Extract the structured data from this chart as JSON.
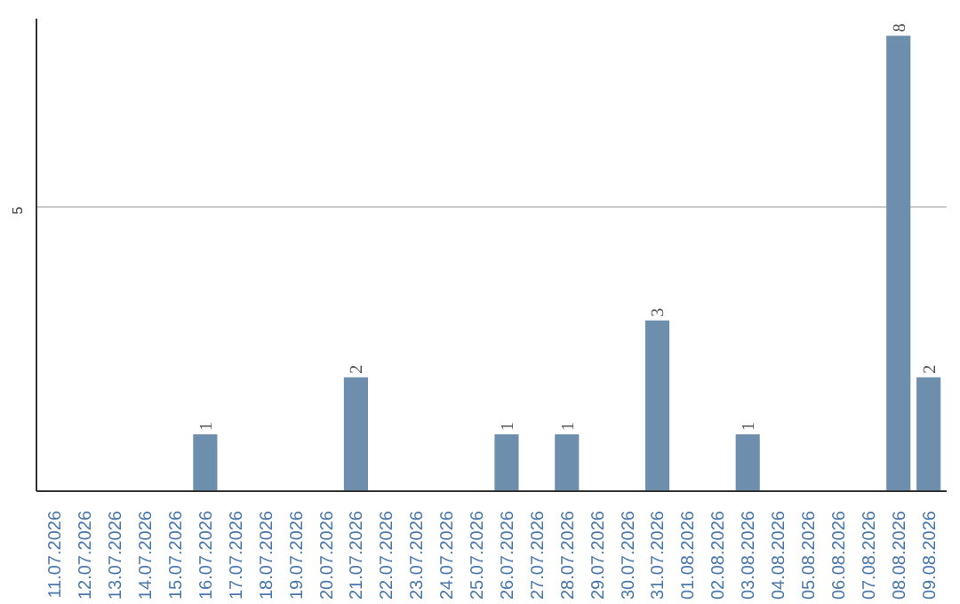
{
  "chart_data": {
    "type": "bar",
    "categories": [
      "11.07.2026",
      "12.07.2026",
      "13.07.2026",
      "14.07.2026",
      "15.07.2026",
      "16.07.2026",
      "17.07.2026",
      "18.07.2026",
      "19.07.2026",
      "20.07.2026",
      "21.07.2026",
      "22.07.2026",
      "23.07.2026",
      "24.07.2026",
      "25.07.2026",
      "26.07.2026",
      "27.07.2026",
      "28.07.2026",
      "29.07.2026",
      "30.07.2026",
      "31.07.2026",
      "01.08.2026",
      "02.08.2026",
      "03.08.2026",
      "04.08.2026",
      "05.08.2026",
      "06.08.2026",
      "07.08.2026",
      "08.08.2026",
      "09.08.2026"
    ],
    "values": [
      0,
      0,
      0,
      0,
      0,
      1,
      0,
      0,
      0,
      0,
      2,
      0,
      0,
      0,
      0,
      1,
      0,
      1,
      0,
      0,
      3,
      0,
      0,
      1,
      0,
      0,
      0,
      0,
      8,
      2
    ],
    "value_labels": [
      null,
      null,
      null,
      null,
      null,
      "1",
      null,
      null,
      null,
      null,
      "2",
      null,
      null,
      null,
      null,
      "1",
      null,
      "1",
      null,
      null,
      "3",
      null,
      null,
      "1",
      null,
      null,
      null,
      null,
      "8",
      "2"
    ],
    "color": "#6d8fad",
    "ylim": [
      0,
      8.3
    ],
    "yticks": [
      5
    ],
    "grid": "y"
  }
}
